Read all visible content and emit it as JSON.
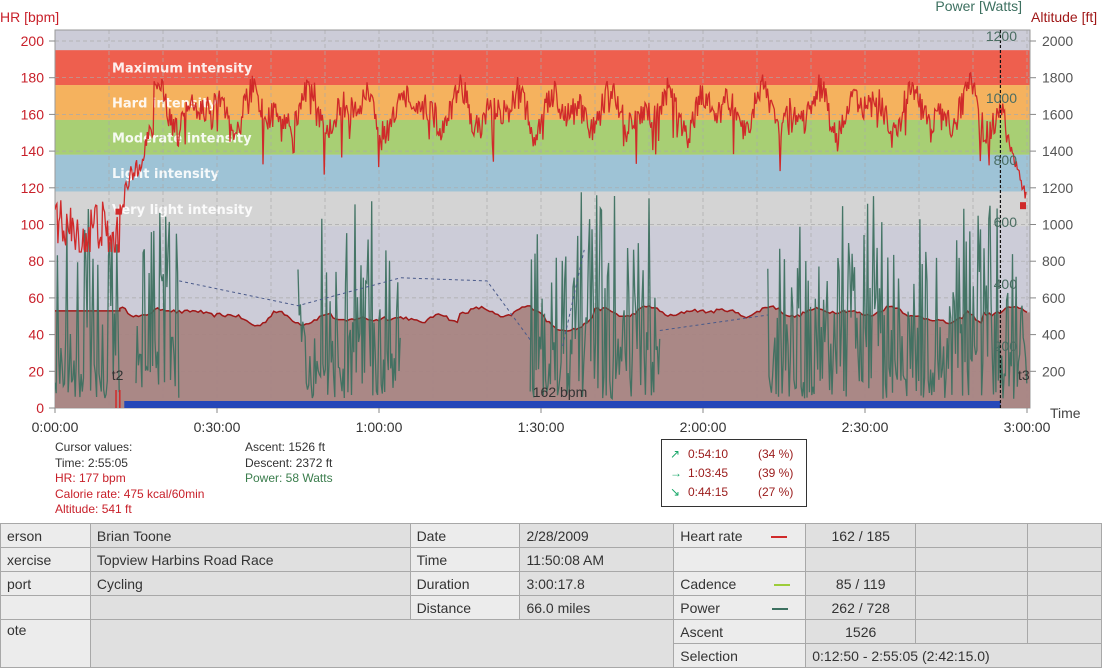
{
  "axes": {
    "hr_label": "HR [bpm]",
    "power_label": "Power [Watts]",
    "altitude_label": "Altitude [ft]",
    "time_label": "Time",
    "hr_ticks": [
      "0",
      "20",
      "40",
      "60",
      "80",
      "100",
      "120",
      "140",
      "160",
      "180",
      "200"
    ],
    "power_ticks": [
      "200",
      "400",
      "600",
      "800",
      "1000",
      "1200"
    ],
    "altitude_ticks": [
      "200",
      "400",
      "600",
      "800",
      "1000",
      "1200",
      "1400",
      "1600",
      "1800",
      "2000"
    ],
    "time_ticks": [
      "0:00:00",
      "0:30:00",
      "1:00:00",
      "1:30:00",
      "2:00:00",
      "2:30:00",
      "3:00:00"
    ]
  },
  "zones": [
    {
      "label": "Maximum intensity",
      "min": 176,
      "max": 195,
      "color": "#ee5f4e"
    },
    {
      "label": "Hard intensity",
      "min": 157,
      "max": 176,
      "color": "#f5b25e"
    },
    {
      "label": "Moderate intensity",
      "min": 138,
      "max": 157,
      "color": "#a8cf74"
    },
    {
      "label": "Light intensity",
      "min": 118,
      "max": 138,
      "color": "#9ec3d6"
    },
    {
      "label": "Very light intensity",
      "min": 99,
      "max": 118,
      "color": "#d4d4d4"
    }
  ],
  "chart_markers": {
    "lap_start": "t2",
    "lap_end": "t3",
    "selection_label": "162 bpm"
  },
  "cursor": {
    "title": "Cursor values:",
    "time": "Time: 2:55:05",
    "hr": "HR: 177 bpm",
    "calorie": "Calorie rate: 475 kcal/60min",
    "altitude": "Altitude: 541 ft",
    "ascent": "Ascent: 1526 ft",
    "descent": "Descent: 2372 ft",
    "power": "Power: 58 Watts"
  },
  "zone_times": [
    {
      "arrow": "↗",
      "time": "0:54:10",
      "pct": "(34 %)"
    },
    {
      "arrow": "→",
      "time": "1:03:45",
      "pct": "(39 %)"
    },
    {
      "arrow": "↘",
      "time": "0:44:15",
      "pct": "(27 %)"
    }
  ],
  "info": {
    "person_label": "erson",
    "person": "Brian Toone",
    "exercise_label": "xercise",
    "exercise": "Topview Harbins Road Race",
    "sport_label": "port",
    "sport": "Cycling",
    "note_label": "ote",
    "date_label": "Date",
    "date": "2/28/2009",
    "time_label": "Time",
    "time": "11:50:08 AM",
    "duration_label": "Duration",
    "duration": "3:00:17.8",
    "distance_label": "Distance",
    "distance": "66.0 miles",
    "hr_label": "Heart rate",
    "hr": "162 / 185",
    "cadence_label": "Cadence",
    "cadence": "85 / 119",
    "power_label": "Power",
    "power": "262 / 728",
    "ascent_label": "Ascent",
    "ascent": "1526",
    "selection_label": "Selection",
    "selection": "0:12:50 - 2:55:05 (2:42:15.0)"
  },
  "colors": {
    "hr": "#d02a2a",
    "power": "#3d7060",
    "cadence": "#9ccc3a",
    "altitude_fill": "#a88482",
    "altitude_line": "#a01818",
    "selection_bar": "#2547b8",
    "plot_bg": "#ccccd8"
  }
}
